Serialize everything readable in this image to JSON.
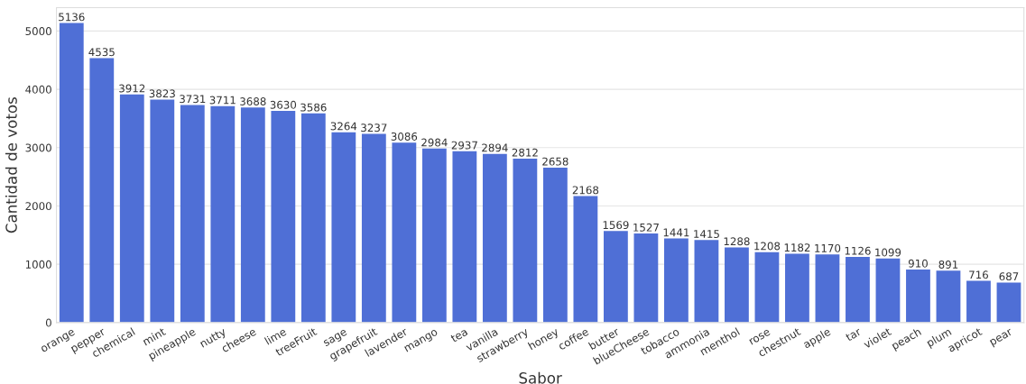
{
  "chart_data": {
    "type": "bar",
    "xlabel": "Sabor",
    "ylabel": "Cantidad de votos",
    "categories": [
      "orange",
      "pepper",
      "chemical",
      "mint",
      "pineapple",
      "nutty",
      "cheese",
      "lime",
      "treeFruit",
      "sage",
      "grapefruit",
      "lavender",
      "mango",
      "tea",
      "vanilla",
      "strawberry",
      "honey",
      "coffee",
      "butter",
      "blueCheese",
      "tobacco",
      "ammonia",
      "menthol",
      "rose",
      "chestnut",
      "apple",
      "tar",
      "violet",
      "peach",
      "plum",
      "apricot",
      "pear"
    ],
    "values": [
      5136,
      4535,
      3912,
      3823,
      3731,
      3711,
      3688,
      3630,
      3586,
      3264,
      3237,
      3086,
      2984,
      2937,
      2894,
      2812,
      2658,
      2168,
      1569,
      1527,
      1441,
      1415,
      1288,
      1208,
      1182,
      1170,
      1126,
      1099,
      910,
      891,
      716,
      687
    ],
    "color": "#4f6fd6",
    "ylim": [
      0,
      5400
    ],
    "yticks": [
      0,
      1000,
      2000,
      3000,
      4000,
      5000
    ],
    "grid": "y",
    "data_labels": true
  }
}
